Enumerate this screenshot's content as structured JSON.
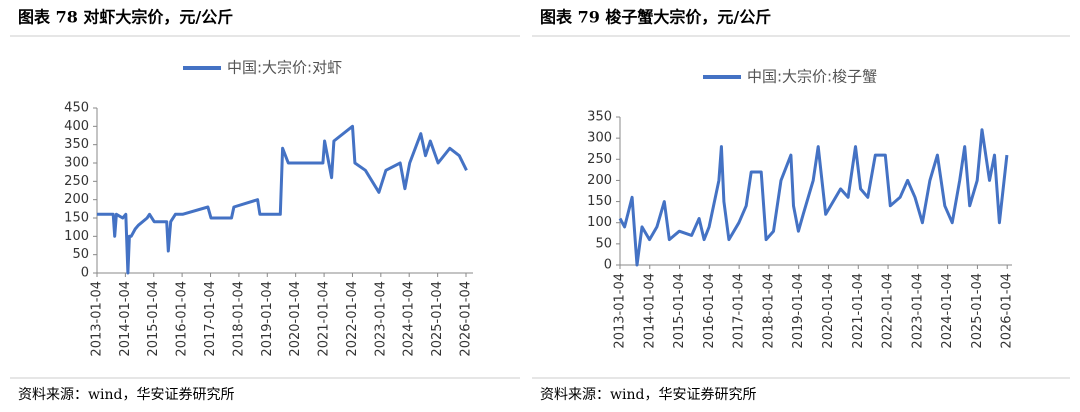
{
  "chart_data": [
    {
      "type": "line",
      "title": "图表 78 对虾大宗价，元/公斤",
      "source": "资料来源：wind，华安证券研究所",
      "series": [
        {
          "name": "中国:大宗价:对虾",
          "color": "#4472c4",
          "x": [
            "2013-01-04",
            "2013-08-01",
            "2013-08-20",
            "2013-09-10",
            "2013-12-01",
            "2014-01-10",
            "2014-02-05",
            "2014-02-25",
            "2014-03-20",
            "2014-05-10",
            "2014-06-20",
            "2014-10-10",
            "2014-11-10",
            "2015-01-10",
            "2015-06-20",
            "2015-07-10",
            "2015-08-10",
            "2015-10-10",
            "2016-01-10",
            "2016-12-01",
            "2017-01-10",
            "2017-10-01",
            "2017-11-01",
            "2018-09-01",
            "2018-10-01",
            "2019-06-20",
            "2019-07-20",
            "2019-10-01",
            "2020-12-20",
            "2021-01-10",
            "2021-04-10",
            "2021-05-10",
            "2022-01-05",
            "2022-02-05",
            "2022-06-20",
            "2022-12-10",
            "2023-03-10",
            "2023-09-10",
            "2023-11-10",
            "2024-01-10",
            "2024-06-01",
            "2024-08-01",
            "2024-10-01",
            "2025-01-10",
            "2025-06-10",
            "2025-10-10",
            "2026-01-10"
          ],
          "values": [
            160,
            160,
            100,
            160,
            150,
            160,
            0,
            100,
            100,
            120,
            130,
            150,
            160,
            140,
            140,
            60,
            140,
            160,
            160,
            180,
            150,
            150,
            180,
            200,
            160,
            160,
            340,
            300,
            300,
            360,
            260,
            360,
            400,
            300,
            280,
            220,
            280,
            300,
            230,
            300,
            380,
            320,
            360,
            300,
            340,
            320,
            280
          ]
        }
      ],
      "xlim": [
        "2013-01-04",
        "2026-04-04"
      ],
      "xticks": [
        "2013-01-04",
        "2014-01-04",
        "2015-01-04",
        "2016-01-04",
        "2017-01-04",
        "2018-01-04",
        "2019-01-04",
        "2020-01-04",
        "2021-01-04",
        "2022-01-04",
        "2023-01-04",
        "2024-01-04",
        "2025-01-04",
        "2026-01-04"
      ],
      "ylim": [
        0,
        450
      ],
      "yticks": [
        0,
        50,
        100,
        150,
        200,
        250,
        300,
        350,
        400,
        450
      ]
    },
    {
      "type": "line",
      "title": "图表 79 梭子蟹大宗价，元/公斤",
      "source": "资料来源：wind，华安证券研究所",
      "series": [
        {
          "name": "中国:大宗价:梭子蟹",
          "color": "#4472c4",
          "x": [
            "2013-01-04",
            "2013-03-01",
            "2013-06-01",
            "2013-08-01",
            "2013-10-01",
            "2014-01-01",
            "2014-04-01",
            "2014-07-01",
            "2014-09-01",
            "2015-01-01",
            "2015-06-01",
            "2015-09-01",
            "2015-11-01",
            "2016-01-01",
            "2016-05-01",
            "2016-06-01",
            "2016-07-01",
            "2016-09-01",
            "2017-01-01",
            "2017-04-01",
            "2017-06-01",
            "2017-10-01",
            "2017-12-01",
            "2018-03-01",
            "2018-06-01",
            "2018-10-01",
            "2018-11-01",
            "2019-01-01",
            "2019-03-01",
            "2019-07-01",
            "2019-09-01",
            "2019-12-01",
            "2020-06-01",
            "2020-09-01",
            "2020-12-01",
            "2021-02-01",
            "2021-05-01",
            "2021-08-01",
            "2021-12-01",
            "2022-02-01",
            "2022-06-01",
            "2022-09-01",
            "2022-12-01",
            "2023-03-01",
            "2023-06-01",
            "2023-09-01",
            "2023-12-01",
            "2024-03-01",
            "2024-06-01",
            "2024-08-01",
            "2024-10-01",
            "2025-01-01",
            "2025-03-01",
            "2025-06-01",
            "2025-08-01",
            "2025-10-01",
            "2026-01-01"
          ],
          "values": [
            110,
            90,
            160,
            0,
            90,
            60,
            90,
            150,
            60,
            80,
            70,
            110,
            60,
            90,
            200,
            280,
            150,
            60,
            100,
            140,
            220,
            220,
            60,
            80,
            200,
            260,
            140,
            80,
            120,
            200,
            280,
            120,
            180,
            160,
            280,
            180,
            160,
            260,
            260,
            140,
            160,
            200,
            160,
            100,
            200,
            260,
            140,
            100,
            200,
            280,
            140,
            200,
            320,
            200,
            260,
            100,
            260
          ]
        }
      ],
      "xlim": [
        "2013-01-04",
        "2026-03-04"
      ],
      "xticks": [
        "2013-01-04",
        "2014-01-04",
        "2015-01-04",
        "2016-01-04",
        "2017-01-04",
        "2018-01-04",
        "2019-01-04",
        "2020-01-04",
        "2021-01-04",
        "2022-01-04",
        "2023-01-04",
        "2024-01-04",
        "2025-01-04",
        "2026-01-04"
      ],
      "ylim": [
        0,
        350
      ],
      "yticks": [
        0,
        50,
        100,
        150,
        200,
        250,
        300,
        350
      ]
    }
  ]
}
